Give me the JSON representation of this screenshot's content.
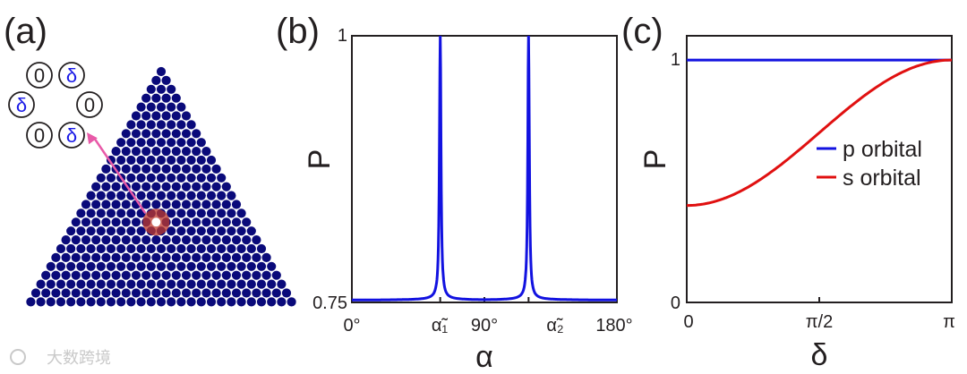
{
  "panels": {
    "a": {
      "label": "(a)"
    },
    "b": {
      "label": "(b)"
    },
    "c": {
      "label": "(c)"
    }
  },
  "inset": {
    "values": [
      "0",
      "δ",
      "δ",
      "0",
      "0",
      "δ"
    ],
    "colors": {
      "zero": "#231f20",
      "delta": "#1a1ae6",
      "ring": "#231f20"
    }
  },
  "lattice": {
    "rows": 27,
    "color": "#0a0a7a",
    "highlight_color": "#c0392b",
    "arrow_color": "#e85aa8"
  },
  "watermark": {
    "text": "大数跨境"
  },
  "colors": {
    "blue": "#1212e0",
    "red": "#e01010",
    "axis": "#231f20"
  },
  "chart_data": [
    {
      "panel": "b",
      "type": "line",
      "xlabel": "α",
      "ylabel": "P",
      "xlim": [
        0,
        180
      ],
      "ylim": [
        0.75,
        1
      ],
      "xtick_labels": [
        "0°",
        "α̃₁",
        "90°",
        "α̃₂",
        "180°"
      ],
      "ytick_labels": [
        "0.75",
        "1"
      ],
      "peaks": [
        60,
        120
      ],
      "series": [
        {
          "color": "#1212e0",
          "x": [
            0,
            10,
            20,
            30,
            40,
            45,
            50,
            53,
            55,
            57,
            58,
            59,
            60,
            61,
            62,
            63,
            65,
            67,
            70,
            75,
            80,
            85,
            90,
            95,
            100,
            105,
            110,
            113,
            115,
            117,
            118,
            119,
            120,
            121,
            122,
            123,
            125,
            127,
            130,
            135,
            140,
            150,
            160,
            170,
            180
          ],
          "y": [
            0.752,
            0.752,
            0.753,
            0.755,
            0.76,
            0.766,
            0.778,
            0.792,
            0.808,
            0.836,
            0.86,
            0.905,
            1.0,
            0.905,
            0.86,
            0.836,
            0.808,
            0.792,
            0.778,
            0.766,
            0.76,
            0.757,
            0.756,
            0.757,
            0.76,
            0.766,
            0.778,
            0.792,
            0.808,
            0.836,
            0.86,
            0.905,
            1.0,
            0.905,
            0.86,
            0.836,
            0.808,
            0.792,
            0.778,
            0.766,
            0.76,
            0.755,
            0.753,
            0.752,
            0.752
          ]
        }
      ]
    },
    {
      "panel": "c",
      "type": "line",
      "xlabel": "δ",
      "ylabel": "P",
      "xlim": [
        0,
        3.14159
      ],
      "ylim": [
        0,
        1.1
      ],
      "xtick_labels": [
        "0",
        "π/2",
        "π"
      ],
      "ytick_labels": [
        "0",
        "1"
      ],
      "series": [
        {
          "name": "p orbital",
          "color": "#1212e0",
          "x": [
            0,
            0.3927,
            0.7854,
            1.1781,
            1.5708,
            1.9635,
            2.3562,
            2.7489,
            3.1416
          ],
          "y": [
            1,
            1,
            1,
            1,
            1,
            1,
            1,
            1,
            1
          ]
        },
        {
          "name": "s orbital",
          "color": "#e01010",
          "x": [
            0,
            0.3927,
            0.7854,
            1.1781,
            1.5708,
            1.9635,
            2.3562,
            2.7489,
            3.1416
          ],
          "y": [
            0.4,
            0.4228,
            0.4879,
            0.5852,
            0.7,
            0.8148,
            0.9121,
            0.9772,
            1.0
          ]
        }
      ]
    }
  ]
}
